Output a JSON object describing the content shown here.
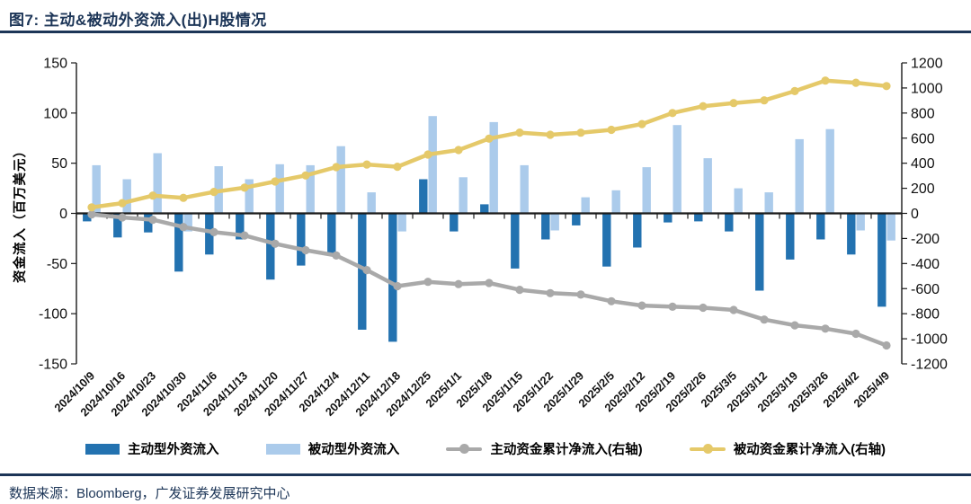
{
  "header": {
    "title": "图7:  主动&被动外资流入(出)H股情况"
  },
  "footer": {
    "source": "数据来源：Bloomberg，广发证券发展研究中心"
  },
  "colors": {
    "active_bar": "#2372B0",
    "passive_bar": "#ABCBEB",
    "active_line": "#A9A9A9",
    "passive_line": "#E5C969",
    "accent_navy": "#1C3557",
    "axis_line": "#1a1a1a",
    "tick_text": "#111111"
  },
  "chart_data": {
    "type": "bar",
    "subtype": "combo-bar-line",
    "grid": false,
    "legend_position": "bottom",
    "ylabel_left": "资金流入（百万美元）",
    "ylim_left": [
      -150,
      150
    ],
    "ylim_right": [
      -1200,
      1200
    ],
    "left_ticks": [
      150,
      100,
      50,
      0,
      -50,
      -100,
      -150
    ],
    "right_ticks": [
      1200,
      1000,
      800,
      600,
      400,
      200,
      0,
      -200,
      -400,
      -600,
      -800,
      -1000,
      -1200
    ],
    "categories": [
      "2024/10/9",
      "2024/10/16",
      "2024/10/23",
      "2024/10/30",
      "2024/11/6",
      "2024/11/13",
      "2024/11/20",
      "2024/11/27",
      "2024/12/4",
      "2024/12/11",
      "2024/12/18",
      "2024/12/25",
      "2025/1/1",
      "2025/1/8",
      "2025/1/15",
      "2025/1/22",
      "2025/1/29",
      "2025/2/5",
      "2025/2/12",
      "2025/2/19",
      "2025/2/26",
      "2025/3/5",
      "2025/3/12",
      "2025/3/19",
      "2025/3/26",
      "2025/4/2",
      "2025/4/9"
    ],
    "series": [
      {
        "name": "主动型外资流入",
        "type": "bar",
        "axis": "left",
        "color_key": "active_bar",
        "values": [
          -8,
          -24,
          -19,
          -58,
          -41,
          -26,
          -66,
          -52,
          -42,
          -116,
          -128,
          34,
          -18,
          9,
          -55,
          -26,
          -12,
          -53,
          -34,
          -9,
          -8,
          -18,
          -77,
          -46,
          -26,
          -41,
          -93
        ]
      },
      {
        "name": "被动型外资流入",
        "type": "bar",
        "axis": "left",
        "color_key": "passive_bar",
        "values": [
          48,
          34,
          60,
          -18,
          47,
          34,
          49,
          48,
          67,
          21,
          -18,
          97,
          36,
          91,
          48,
          -17,
          16,
          23,
          46,
          88,
          55,
          25,
          21,
          74,
          84,
          -17,
          -27
        ]
      },
      {
        "name": "主动资金累计净流入(右轴)",
        "type": "line",
        "axis": "right",
        "color_key": "active_line",
        "values": [
          -8,
          -32,
          -51,
          -109,
          -150,
          -176,
          -242,
          -294,
          -336,
          -452,
          -580,
          -546,
          -564,
          -555,
          -610,
          -636,
          -648,
          -701,
          -735,
          -744,
          -752,
          -770,
          -847,
          -893,
          -919,
          -960,
          -1053
        ]
      },
      {
        "name": "被动资金累计净流入(右轴)",
        "type": "line",
        "axis": "right",
        "color_key": "passive_line",
        "values": [
          48,
          82,
          142,
          124,
          171,
          205,
          254,
          302,
          369,
          390,
          372,
          469,
          505,
          596,
          644,
          627,
          643,
          666,
          712,
          800,
          855,
          880,
          901,
          975,
          1059,
          1042,
          1015
        ]
      }
    ]
  }
}
